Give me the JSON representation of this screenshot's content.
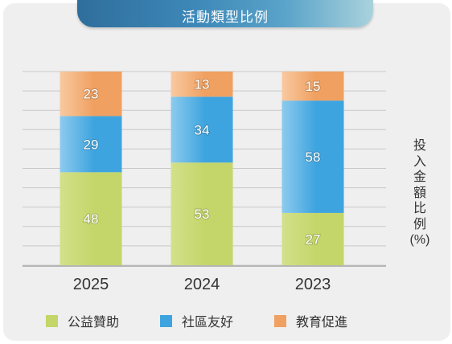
{
  "title": "活動類型比例",
  "chart_data": {
    "type": "bar",
    "stacked": true,
    "categories": [
      "2025",
      "2024",
      "2023"
    ],
    "series": [
      {
        "name": "公益贊助",
        "values": [
          48,
          53,
          27
        ],
        "color": "#c4d66a"
      },
      {
        "name": "社區友好",
        "values": [
          29,
          34,
          58
        ],
        "color": "#3ea4df"
      },
      {
        "name": "教育促進",
        "values": [
          23,
          13,
          15
        ],
        "color": "#f0a060"
      }
    ],
    "ylabel": "投入金額比例(%)",
    "ylim": [
      0,
      100
    ],
    "grid": true,
    "legend_position": "bottom"
  },
  "ylabel_chars": [
    "投",
    "入",
    "金",
    "額",
    "比",
    "例",
    "(%)"
  ]
}
